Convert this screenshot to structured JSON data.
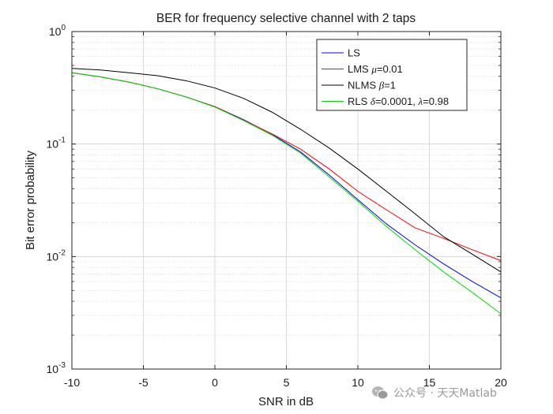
{
  "chart_data": {
    "type": "line",
    "title": "BER for frequency selective channel with 2 taps",
    "xlabel": "SNR in dB",
    "ylabel": "Bit error probability",
    "xlim": [
      -10,
      20
    ],
    "ylim": [
      0.001,
      1
    ],
    "yscale": "log",
    "grid": true,
    "minor_grid": true,
    "legend_position": "top-right",
    "x_ticks": [
      -10,
      -5,
      0,
      5,
      10,
      15,
      20
    ],
    "x_tick_labels": [
      "-10",
      "-5",
      "0",
      "5",
      "10",
      "15",
      "20"
    ],
    "y_ticks": [
      {
        "value": 1,
        "base": "10",
        "exp": "0"
      },
      {
        "value": 0.1,
        "base": "10",
        "exp": "-1"
      },
      {
        "value": 0.01,
        "base": "10",
        "exp": "-2"
      },
      {
        "value": 0.001,
        "base": "10",
        "exp": "-3"
      }
    ],
    "x": [
      -10,
      -8,
      -6,
      -4,
      -2,
      0,
      2,
      4,
      6,
      8,
      10,
      12,
      14,
      16,
      18,
      20
    ],
    "series": [
      {
        "name": "LS",
        "color": "#0000ff",
        "values": [
          0.43,
          0.395,
          0.355,
          0.31,
          0.262,
          0.215,
          0.165,
          0.122,
          0.085,
          0.053,
          0.032,
          0.0195,
          0.0127,
          0.0086,
          0.006,
          0.0043
        ],
        "legend": {
          "prefix": "LS"
        }
      },
      {
        "name": "LMS μ=0.01",
        "color": "#ff0000",
        "values": [
          0.43,
          0.395,
          0.355,
          0.31,
          0.262,
          0.215,
          0.163,
          0.123,
          0.09,
          0.06,
          0.038,
          0.026,
          0.018,
          0.0145,
          0.0115,
          0.0092
        ],
        "legend": {
          "prefix": "LMS ",
          "sym1": "μ",
          "mid": "=0.01"
        }
      },
      {
        "name": "NLMS β=1",
        "color": "#000000",
        "values": [
          0.47,
          0.455,
          0.43,
          0.405,
          0.365,
          0.315,
          0.255,
          0.192,
          0.135,
          0.092,
          0.06,
          0.038,
          0.024,
          0.015,
          0.0105,
          0.0073
        ],
        "legend": {
          "prefix": "NLMS ",
          "sym1": "β",
          "mid": "=1"
        }
      },
      {
        "name": "RLS δ=0.0001, λ=0.98",
        "color": "#00dd00",
        "values": [
          0.43,
          0.395,
          0.355,
          0.31,
          0.262,
          0.213,
          0.162,
          0.12,
          0.083,
          0.051,
          0.031,
          0.0185,
          0.0115,
          0.0073,
          0.0048,
          0.0031
        ],
        "legend": {
          "prefix": "RLS  ",
          "sym1": "δ",
          "mid": "=0.0001, ",
          "sym2": "λ",
          "suffix": "=0.98"
        }
      }
    ]
  },
  "watermark": {
    "text": "公众号 · 天天Matlab",
    "icon": "wechat-icon"
  }
}
